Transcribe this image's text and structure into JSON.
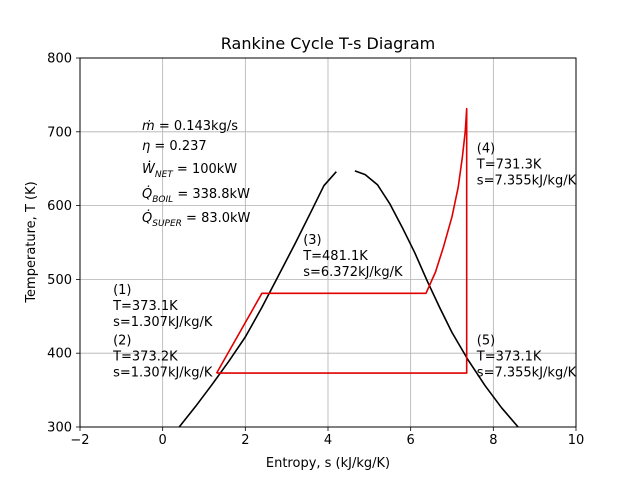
{
  "chart_data": {
    "type": "line",
    "title": "Rankine Cycle T-s Diagram",
    "xlabel": "Entropy, s (kJ/kg/K)",
    "ylabel": "Temperature, T (K)",
    "xlim": [
      -2,
      10
    ],
    "ylim": [
      300,
      800
    ],
    "xticks": [
      -2,
      0,
      2,
      4,
      6,
      8,
      10
    ],
    "yticks": [
      300,
      400,
      500,
      600,
      700,
      800
    ],
    "grid": true,
    "series": [
      {
        "color": "#000000",
        "points": [
          [
            0.4,
            300
          ],
          [
            0.8,
            328
          ],
          [
            1.2,
            358
          ],
          [
            1.6,
            389
          ],
          [
            2.0,
            422
          ],
          [
            2.4,
            462
          ],
          [
            2.8,
            505
          ],
          [
            3.2,
            548
          ],
          [
            3.6,
            593
          ],
          [
            3.9,
            627
          ],
          [
            4.2,
            646
          ]
        ]
      },
      {
        "color": "#000000",
        "points": [
          [
            4.65,
            647
          ],
          [
            4.9,
            642
          ],
          [
            5.2,
            628
          ],
          [
            5.5,
            602
          ],
          [
            5.8,
            570
          ],
          [
            6.1,
            536
          ],
          [
            6.4,
            498
          ],
          [
            6.7,
            462
          ],
          [
            7.0,
            428
          ],
          [
            7.4,
            390
          ],
          [
            7.8,
            356
          ],
          [
            8.2,
            326
          ],
          [
            8.6,
            300
          ]
        ]
      },
      {
        "color": "#e00000",
        "points": [
          [
            1.307,
            373.1
          ],
          [
            1.307,
            373.2
          ],
          [
            2.4,
            481.1
          ],
          [
            6.372,
            481.1
          ],
          [
            6.6,
            510
          ],
          [
            6.8,
            545
          ],
          [
            7.0,
            585
          ],
          [
            7.15,
            625
          ],
          [
            7.25,
            665
          ],
          [
            7.32,
            700
          ],
          [
            7.355,
            731.3
          ],
          [
            7.355,
            373.1
          ],
          [
            1.307,
            373.1
          ]
        ]
      }
    ],
    "annotations": [
      {
        "lines": [
          "(1)",
          "T=373.1K",
          "s=1.307kJ/kg/K"
        ],
        "x": -1.2,
        "y": 480
      },
      {
        "lines": [
          "(2)",
          "T=373.2K",
          "s=1.307kJ/kg/K"
        ],
        "x": -1.2,
        "y": 412
      },
      {
        "lines": [
          "(3)",
          "T=481.1K",
          "s=6.372kJ/kg/K"
        ],
        "x": 3.4,
        "y": 548
      },
      {
        "lines": [
          "(4)",
          "T=731.3K",
          "s=7.355kJ/kg/K"
        ],
        "x": 7.6,
        "y": 672
      },
      {
        "lines": [
          "(5)",
          "T=373.1K",
          "s=7.355kJ/kg/K"
        ],
        "x": 7.6,
        "y": 412
      }
    ],
    "info": {
      "mdot": "= 0.143kg/s",
      "eta": "= 0.237",
      "wnet": "= 100kW",
      "qboil": "= 338.8kW",
      "qsuper": "= 83.0kW"
    }
  }
}
